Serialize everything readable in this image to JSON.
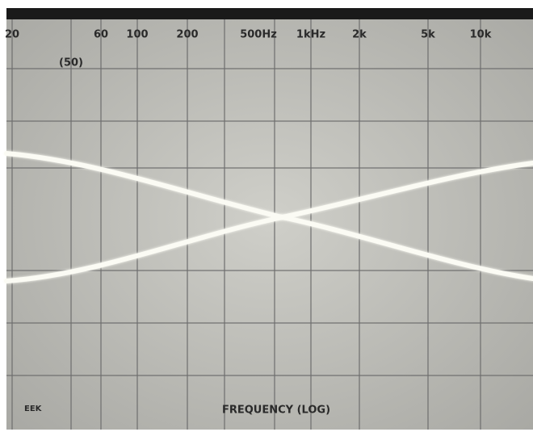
{
  "screen": {
    "frequency_labels": [
      "20",
      "60",
      "100",
      "200",
      "500Hz",
      "1kHz",
      "2k",
      "5k",
      "10k"
    ],
    "sub_label": "(50)",
    "axis_title": "FREQUENCY (LOG)",
    "corner_label": "EEK"
  }
}
